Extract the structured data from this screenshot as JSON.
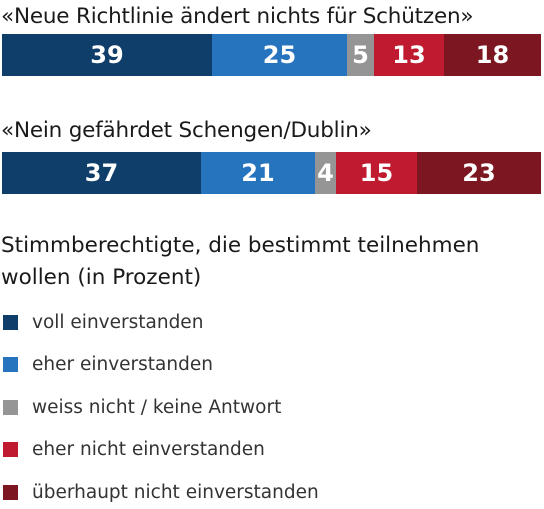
{
  "chart_data": {
    "type": "bar",
    "stacked": true,
    "orientation": "horizontal",
    "normalized": true,
    "categories": [
      "«Neue Richtlinie ändert nichts für Schützen»",
      "«Nein gefährdet Schengen/Dublin»"
    ],
    "series": [
      {
        "name": "voll einverstanden",
        "values": [
          39,
          37
        ],
        "color": "#0f3e6b"
      },
      {
        "name": "eher einverstanden",
        "values": [
          25,
          21
        ],
        "color": "#2673be"
      },
      {
        "name": "weiss nicht / keine Antwort",
        "values": [
          5,
          4
        ],
        "color": "#959595"
      },
      {
        "name": "eher nicht einverstanden",
        "values": [
          13,
          15
        ],
        "color": "#bf1a2f"
      },
      {
        "name": "überhaupt nicht einverstanden",
        "values": [
          18,
          23
        ],
        "color": "#7c1620"
      }
    ],
    "legend_title": "Stimmberechtigte, die bestimmt teilnehmen wollen (in Prozent)",
    "legend_position": "bottom"
  }
}
